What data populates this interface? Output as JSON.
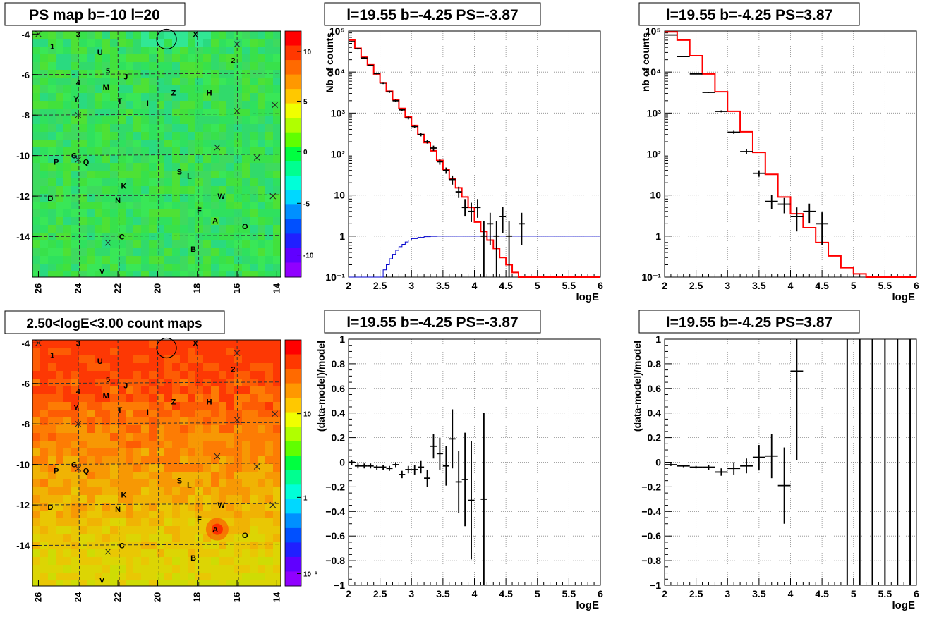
{
  "colors": {
    "red": "#ff0000",
    "blue": "#0000cc",
    "black": "#000000",
    "grid": "#777777"
  },
  "maps": [
    {
      "title": "PS map b=-10 l=20",
      "scale": "residual",
      "xticks": [
        "26",
        "24",
        "22",
        "20",
        "18",
        "16",
        "14"
      ],
      "yticks": [
        "-4",
        "-6",
        "-8",
        "-10",
        "-12",
        "-14"
      ],
      "zticks": [
        "10",
        "5",
        "0",
        "-5",
        "-10"
      ],
      "hotspot": false
    },
    {
      "title": "2.50<logE<3.00 count maps",
      "scale": "counts",
      "xticks": [
        "26",
        "24",
        "22",
        "20",
        "18",
        "16",
        "14"
      ],
      "yticks": [
        "-4",
        "-6",
        "-8",
        "-10",
        "-12",
        "-14"
      ],
      "zticks": [
        "10",
        "1",
        "10⁻¹"
      ],
      "hotspot": true
    }
  ],
  "source_labels": [
    {
      "t": "1",
      "l": 25.3,
      "b": -4.6
    },
    {
      "t": "3",
      "l": 24.0,
      "b": -4.0
    },
    {
      "t": "U",
      "l": 22.9,
      "b": -4.9
    },
    {
      "t": "2",
      "l": 16.2,
      "b": -5.3
    },
    {
      "t": "5",
      "l": 22.5,
      "b": -5.8
    },
    {
      "t": "J",
      "l": 21.6,
      "b": -6.1
    },
    {
      "t": "4",
      "l": 24.0,
      "b": -6.4
    },
    {
      "t": "M",
      "l": 22.6,
      "b": -6.6
    },
    {
      "t": "Z",
      "l": 19.2,
      "b": -6.9
    },
    {
      "t": "H",
      "l": 17.4,
      "b": -6.9
    },
    {
      "t": "Y",
      "l": 24.1,
      "b": -7.2
    },
    {
      "t": "T",
      "l": 21.9,
      "b": -7.3
    },
    {
      "t": "I",
      "l": 20.5,
      "b": -7.4
    },
    {
      "t": "G",
      "l": 24.2,
      "b": -10.0
    },
    {
      "t": "P",
      "l": 25.1,
      "b": -10.3
    },
    {
      "t": "Q",
      "l": 23.6,
      "b": -10.3
    },
    {
      "t": "S",
      "l": 18.9,
      "b": -10.8
    },
    {
      "t": "L",
      "l": 18.4,
      "b": -11.0
    },
    {
      "t": "K",
      "l": 21.7,
      "b": -11.5
    },
    {
      "t": "D",
      "l": 25.4,
      "b": -12.1
    },
    {
      "t": "N",
      "l": 22.0,
      "b": -12.2
    },
    {
      "t": "W",
      "l": 16.8,
      "b": -12.0
    },
    {
      "t": "F",
      "l": 17.9,
      "b": -12.7
    },
    {
      "t": "A",
      "l": 17.1,
      "b": -13.2
    },
    {
      "t": "O",
      "l": 15.6,
      "b": -13.5
    },
    {
      "t": "C",
      "l": 21.8,
      "b": -14.0
    },
    {
      "t": "B",
      "l": 18.2,
      "b": -14.6
    },
    {
      "t": "V",
      "l": 22.8,
      "b": -15.7
    },
    {
      "t": "X",
      "l": 18.1,
      "b": -4.0
    }
  ],
  "source_crosses": [
    {
      "l": 26.0,
      "b": -4.0
    },
    {
      "l": 16.0,
      "b": -4.5
    },
    {
      "l": 16.0,
      "b": -7.8
    },
    {
      "l": 14.1,
      "b": -7.5
    },
    {
      "l": 24.0,
      "b": -8.0
    },
    {
      "l": 17.0,
      "b": -9.6
    },
    {
      "l": 15.0,
      "b": -10.1
    },
    {
      "l": 24.0,
      "b": -10.2
    },
    {
      "l": 14.2,
      "b": -12.0
    },
    {
      "l": 22.5,
      "b": -14.3
    }
  ],
  "circle": {
    "l": 19.55,
    "b": -4.25
  },
  "chart_data": [
    {
      "type": "line",
      "title": "l=19.55 b=-4.25 PS=-3.87",
      "xlabel": "logE",
      "ylabel": "Nb of counts",
      "xlim": [
        2,
        6
      ],
      "ylim": [
        0.1,
        100000
      ],
      "log_y": true,
      "grid": true,
      "xticks": [
        "2",
        "2.5",
        "3",
        "3.5",
        "4",
        "4.5",
        "5",
        "5.5",
        "6"
      ],
      "yticks": [
        "10⁻¹",
        "1",
        "10",
        "10²",
        "10³",
        "10⁴",
        "10⁵"
      ],
      "model_red": {
        "edges": [
          2,
          2.1,
          2.2,
          2.3,
          2.4,
          2.5,
          2.6,
          2.7,
          2.8,
          2.9,
          3.0,
          3.1,
          3.2,
          3.3,
          3.4,
          3.5,
          3.6,
          3.7,
          3.8,
          3.9,
          4.0,
          4.1,
          4.2,
          4.3,
          4.4,
          4.5,
          4.6,
          4.7,
          4.8,
          6.0
        ],
        "values": [
          60000,
          38000,
          23000,
          15000,
          9000,
          5500,
          3400,
          2100,
          1300,
          800,
          500,
          300,
          190,
          120,
          70,
          42,
          25,
          15,
          9,
          5,
          2.2,
          1.3,
          0.8,
          0.5,
          0.3,
          0.2,
          0.13,
          0.1,
          0.1
        ]
      },
      "model_blue": {
        "edges": [
          2,
          2.5,
          2.55,
          2.6,
          2.65,
          2.7,
          2.75,
          2.8,
          2.85,
          2.9,
          2.95,
          3.0,
          3.1,
          3.2,
          3.3,
          3.4,
          6.0
        ],
        "values": [
          0.09,
          0.1,
          0.15,
          0.2,
          0.28,
          0.36,
          0.45,
          0.55,
          0.63,
          0.72,
          0.8,
          0.87,
          0.93,
          0.97,
          0.99,
          1.0
        ]
      },
      "points": [
        {
          "x": 2.05,
          "y": 55000,
          "lo": 53000,
          "hi": 57000
        },
        {
          "x": 2.15,
          "y": 37000,
          "lo": 35500,
          "hi": 38500
        },
        {
          "x": 2.25,
          "y": 22000,
          "lo": 21000,
          "hi": 23000
        },
        {
          "x": 2.35,
          "y": 14500,
          "lo": 14000,
          "hi": 15000
        },
        {
          "x": 2.45,
          "y": 9200,
          "lo": 8800,
          "hi": 9600
        },
        {
          "x": 2.55,
          "y": 5400,
          "lo": 5100,
          "hi": 5700
        },
        {
          "x": 2.65,
          "y": 3300,
          "lo": 3100,
          "hi": 3500
        },
        {
          "x": 2.75,
          "y": 2000,
          "lo": 1880,
          "hi": 2120
        },
        {
          "x": 2.85,
          "y": 1200,
          "lo": 1110,
          "hi": 1290
        },
        {
          "x": 2.95,
          "y": 760,
          "lo": 700,
          "hi": 820
        },
        {
          "x": 3.05,
          "y": 470,
          "lo": 430,
          "hi": 510
        },
        {
          "x": 3.15,
          "y": 300,
          "lo": 270,
          "hi": 330
        },
        {
          "x": 3.25,
          "y": 200,
          "lo": 180,
          "hi": 225
        },
        {
          "x": 3.35,
          "y": 140,
          "lo": 120,
          "hi": 160
        },
        {
          "x": 3.45,
          "y": 65,
          "lo": 55,
          "hi": 76
        },
        {
          "x": 3.55,
          "y": 40,
          "lo": 33,
          "hi": 47
        },
        {
          "x": 3.65,
          "y": 24,
          "lo": 18,
          "hi": 30
        },
        {
          "x": 3.75,
          "y": 12,
          "lo": 8.5,
          "hi": 16
        },
        {
          "x": 3.85,
          "y": 5,
          "lo": 3,
          "hi": 8
        },
        {
          "x": 3.95,
          "y": 4,
          "lo": 2.2,
          "hi": 6.5
        },
        {
          "x": 4.05,
          "y": 5,
          "lo": 2.8,
          "hi": 8
        },
        {
          "x": 4.15,
          "y": 1,
          "lo": 0.1,
          "hi": 2.3
        },
        {
          "x": 4.25,
          "y": 2,
          "lo": 0.6,
          "hi": 3.7
        },
        {
          "x": 4.35,
          "y": 1,
          "lo": 0.1,
          "hi": 2.3
        },
        {
          "x": 4.45,
          "y": 3,
          "lo": 1.2,
          "hi": 5.2
        },
        {
          "x": 4.55,
          "y": 1,
          "lo": 0.1,
          "hi": 2.3
        },
        {
          "x": 4.75,
          "y": 2,
          "lo": 0.6,
          "hi": 3.7
        }
      ]
    },
    {
      "type": "line",
      "title": "l=19.55 b=-4.25 PS=3.87",
      "xlabel": "logE",
      "ylabel": "nb of counts",
      "xlim": [
        2,
        6
      ],
      "ylim": [
        0.1,
        100000
      ],
      "log_y": true,
      "grid": true,
      "xticks": [
        "2",
        "2.5",
        "3",
        "3.5",
        "4",
        "4.5",
        "5",
        "5.5",
        "6"
      ],
      "yticks": [
        "10⁻¹",
        "1",
        "10",
        "10²",
        "10³",
        "10⁴",
        "10⁵"
      ],
      "model_red": {
        "edges": [
          2,
          2.2,
          2.4,
          2.6,
          2.8,
          3.0,
          3.2,
          3.4,
          3.6,
          3.8,
          4.0,
          4.2,
          4.4,
          4.6,
          4.8,
          5.0,
          5.2,
          6.0
        ],
        "values": [
          95000,
          60000,
          25000,
          9000,
          3300,
          1100,
          350,
          110,
          32,
          9,
          3.5,
          1.6,
          0.7,
          0.33,
          0.17,
          0.12,
          0.1
        ]
      },
      "points": [
        {
          "x": 2.1,
          "y": 80000,
          "lo": 79000,
          "hi": 81000
        },
        {
          "x": 2.3,
          "y": 24000,
          "lo": 23500,
          "hi": 24500
        },
        {
          "x": 2.5,
          "y": 9000,
          "lo": 8800,
          "hi": 9200
        },
        {
          "x": 2.7,
          "y": 3200,
          "lo": 3080,
          "hi": 3320
        },
        {
          "x": 2.9,
          "y": 1100,
          "lo": 1040,
          "hi": 1160
        },
        {
          "x": 3.1,
          "y": 340,
          "lo": 310,
          "hi": 370
        },
        {
          "x": 3.3,
          "y": 115,
          "lo": 100,
          "hi": 130
        },
        {
          "x": 3.5,
          "y": 34,
          "lo": 28,
          "hi": 40
        },
        {
          "x": 3.7,
          "y": 7,
          "lo": 4.5,
          "hi": 10
        },
        {
          "x": 3.9,
          "y": 6,
          "lo": 3.6,
          "hi": 8.5
        },
        {
          "x": 4.1,
          "y": 3,
          "lo": 1.3,
          "hi": 5
        },
        {
          "x": 4.3,
          "y": 4,
          "lo": 2.1,
          "hi": 6.2
        },
        {
          "x": 4.5,
          "y": 2,
          "lo": 0.6,
          "hi": 3.8
        }
      ]
    },
    {
      "type": "scatter",
      "title": "l=19.55 b=-4.25 PS=-3.87",
      "xlabel": "logE",
      "ylabel": "(data-model)/model",
      "xlim": [
        2,
        6
      ],
      "ylim": [
        -1,
        1
      ],
      "grid": true,
      "xticks": [
        "2",
        "2.5",
        "3",
        "3.5",
        "4",
        "4.5",
        "5",
        "5.5",
        "6"
      ],
      "yticks": [
        "−1",
        "−0.8",
        "−0.6",
        "−0.4",
        "−0.2",
        "0",
        "0.2",
        "0.4",
        "0.6",
        "0.8",
        "1"
      ],
      "points": [
        {
          "x": 2.05,
          "y": 0.0,
          "e": 0.02
        },
        {
          "x": 2.15,
          "y": -0.03,
          "e": 0.02
        },
        {
          "x": 2.25,
          "y": -0.03,
          "e": 0.02
        },
        {
          "x": 2.35,
          "y": -0.03,
          "e": 0.02
        },
        {
          "x": 2.45,
          "y": -0.04,
          "e": 0.02
        },
        {
          "x": 2.55,
          "y": -0.04,
          "e": 0.02
        },
        {
          "x": 2.65,
          "y": -0.05,
          "e": 0.02
        },
        {
          "x": 2.75,
          "y": -0.02,
          "e": 0.02
        },
        {
          "x": 2.85,
          "y": -0.1,
          "e": 0.03
        },
        {
          "x": 2.95,
          "y": -0.06,
          "e": 0.03
        },
        {
          "x": 3.05,
          "y": -0.06,
          "e": 0.04
        },
        {
          "x": 3.15,
          "y": -0.04,
          "e": 0.05
        },
        {
          "x": 3.25,
          "y": -0.13,
          "e": 0.07
        },
        {
          "x": 3.35,
          "y": 0.13,
          "e": 0.1
        },
        {
          "x": 3.45,
          "y": 0.07,
          "e": 0.13
        },
        {
          "x": 3.55,
          "y": -0.03,
          "e": 0.16
        },
        {
          "x": 3.65,
          "y": 0.19,
          "e": 0.24
        },
        {
          "x": 3.75,
          "y": -0.16,
          "e": 0.25
        },
        {
          "x": 3.85,
          "y": -0.14,
          "e": 0.38
        },
        {
          "x": 3.95,
          "y": -0.31,
          "e": 0.48
        },
        {
          "x": 4.15,
          "y": -0.3,
          "e": 0.7
        }
      ]
    },
    {
      "type": "scatter",
      "title": "l=19.55 b=-4.25 PS=3.87",
      "xlabel": "logE",
      "ylabel": "(data-model)/model",
      "xlim": [
        2,
        6
      ],
      "ylim": [
        -1,
        1
      ],
      "grid": true,
      "xticks": [
        "2",
        "2.5",
        "3",
        "3.5",
        "4",
        "4.5",
        "5",
        "5.5",
        "6"
      ],
      "yticks": [
        "−1",
        "−0.8",
        "−0.6",
        "−0.4",
        "−0.2",
        "0",
        "0.2",
        "0.4",
        "0.6",
        "0.8",
        "1"
      ],
      "points": [
        {
          "x": 2.1,
          "y": -0.02,
          "e": 0.01
        },
        {
          "x": 2.3,
          "y": -0.03,
          "e": 0.01
        },
        {
          "x": 2.5,
          "y": -0.04,
          "e": 0.01
        },
        {
          "x": 2.7,
          "y": -0.04,
          "e": 0.02
        },
        {
          "x": 2.9,
          "y": -0.08,
          "e": 0.03
        },
        {
          "x": 3.1,
          "y": -0.05,
          "e": 0.05
        },
        {
          "x": 3.3,
          "y": -0.03,
          "e": 0.06
        },
        {
          "x": 3.5,
          "y": 0.04,
          "e": 0.1
        },
        {
          "x": 3.7,
          "y": 0.05,
          "e": 0.18
        },
        {
          "x": 3.9,
          "y": -0.19,
          "e": 0.31
        },
        {
          "x": 4.1,
          "y": 0.74,
          "e": 0.72
        }
      ],
      "vertical_bars_x": [
        4.9,
        5.1,
        5.3,
        5.5,
        5.7,
        5.9
      ]
    }
  ]
}
